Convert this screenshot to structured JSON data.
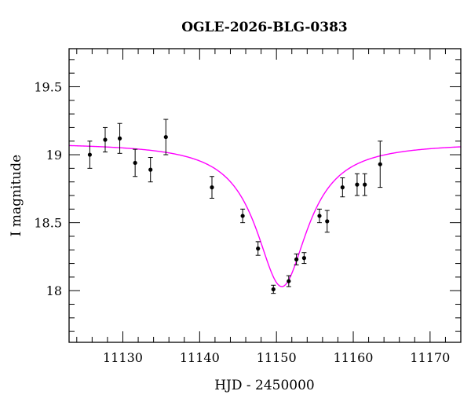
{
  "chart_data": {
    "type": "scatter",
    "title": "OGLE-2026-BLG-0383",
    "xlabel": "HJD - 2450000",
    "ylabel": "I magnitude",
    "xlim": [
      11123,
      11174
    ],
    "ylim": [
      19.78,
      17.62
    ],
    "y_inverted": true,
    "grid": false,
    "x_ticks": [
      11130,
      11140,
      11150,
      11160,
      11170
    ],
    "x_tick_labels": [
      "11130",
      "11140",
      "11150",
      "11160",
      "11170"
    ],
    "y_ticks": [
      18,
      18.5,
      19,
      19.5
    ],
    "y_tick_labels": [
      "18",
      "18.5",
      "19",
      "19.5"
    ],
    "points": [
      {
        "x": 11125.7,
        "y": 19.0,
        "err": 0.1
      },
      {
        "x": 11127.7,
        "y": 19.11,
        "err": 0.09
      },
      {
        "x": 11129.6,
        "y": 19.12,
        "err": 0.11
      },
      {
        "x": 11131.6,
        "y": 18.94,
        "err": 0.1
      },
      {
        "x": 11133.6,
        "y": 18.89,
        "err": 0.09
      },
      {
        "x": 11135.6,
        "y": 19.13,
        "err": 0.13
      },
      {
        "x": 11141.6,
        "y": 18.76,
        "err": 0.08
      },
      {
        "x": 11145.6,
        "y": 18.55,
        "err": 0.05
      },
      {
        "x": 11147.6,
        "y": 18.31,
        "err": 0.05
      },
      {
        "x": 11149.6,
        "y": 18.01,
        "err": 0.03
      },
      {
        "x": 11151.6,
        "y": 18.07,
        "err": 0.04
      },
      {
        "x": 11152.6,
        "y": 18.23,
        "err": 0.04
      },
      {
        "x": 11153.6,
        "y": 18.24,
        "err": 0.04
      },
      {
        "x": 11155.6,
        "y": 18.55,
        "err": 0.05
      },
      {
        "x": 11156.6,
        "y": 18.51,
        "err": 0.08
      },
      {
        "x": 11158.6,
        "y": 18.76,
        "err": 0.07
      },
      {
        "x": 11160.5,
        "y": 18.78,
        "err": 0.08
      },
      {
        "x": 11161.5,
        "y": 18.78,
        "err": 0.08
      },
      {
        "x": 11163.5,
        "y": 18.93,
        "err": 0.17
      }
    ],
    "model": {
      "name": "model-curve",
      "t0": 11150.7,
      "peak_mag": 18.03,
      "baseline_mag": 19.09,
      "half_width_days": 4.1
    },
    "colors": {
      "points": "#000000",
      "model": "#ff00ff",
      "axes": "#000000"
    }
  }
}
